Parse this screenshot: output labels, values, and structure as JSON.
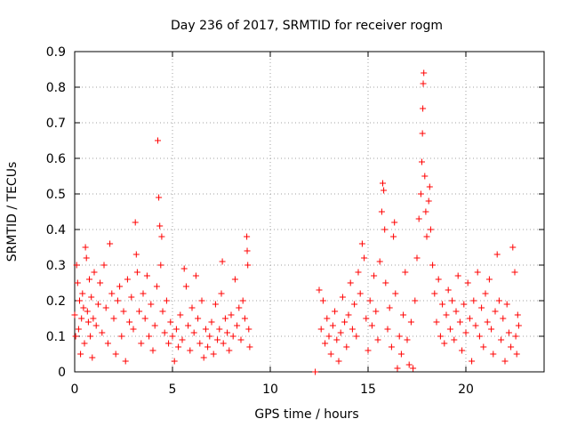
{
  "chart_data": {
    "type": "scatter",
    "title": "Day 236 of 2017, SRMTID for receiver rogm",
    "xlabel": "GPS time / hours",
    "ylabel": "SRMTID / TECUs",
    "xlim": [
      0,
      24
    ],
    "ylim": [
      0,
      0.9
    ],
    "xticks": [
      0,
      5,
      10,
      15,
      20
    ],
    "xtick_labels": [
      "0",
      "5",
      "10",
      "15",
      "20"
    ],
    "yticks": [
      0,
      0.1,
      0.2,
      0.3,
      0.4,
      0.5,
      0.6,
      0.7,
      0.8,
      0.9
    ],
    "ytick_labels": [
      "0",
      "0.1",
      "0.2",
      "0.3",
      "0.4",
      "0.5",
      "0.6",
      "0.7",
      "0.8",
      "0.9"
    ],
    "grid": true,
    "marker": "+",
    "color": "#ff0000",
    "series": [
      {
        "name": "SRMTID",
        "points": [
          [
            0.0,
            0.16
          ],
          [
            0.05,
            0.1
          ],
          [
            0.1,
            0.3
          ],
          [
            0.15,
            0.25
          ],
          [
            0.2,
            0.12
          ],
          [
            0.25,
            0.2
          ],
          [
            0.3,
            0.05
          ],
          [
            0.35,
            0.15
          ],
          [
            0.4,
            0.22
          ],
          [
            0.45,
            0.18
          ],
          [
            0.5,
            0.08
          ],
          [
            0.55,
            0.35
          ],
          [
            0.6,
            0.32
          ],
          [
            0.65,
            0.17
          ],
          [
            0.7,
            0.14
          ],
          [
            0.75,
            0.26
          ],
          [
            0.8,
            0.1
          ],
          [
            0.85,
            0.21
          ],
          [
            0.9,
            0.04
          ],
          [
            0.95,
            0.15
          ],
          [
            1.0,
            0.28
          ],
          [
            1.1,
            0.13
          ],
          [
            1.2,
            0.19
          ],
          [
            1.3,
            0.25
          ],
          [
            1.4,
            0.11
          ],
          [
            1.5,
            0.3
          ],
          [
            1.6,
            0.18
          ],
          [
            1.7,
            0.08
          ],
          [
            1.8,
            0.36
          ],
          [
            1.9,
            0.22
          ],
          [
            2.0,
            0.15
          ],
          [
            2.1,
            0.05
          ],
          [
            2.2,
            0.2
          ],
          [
            2.3,
            0.24
          ],
          [
            2.4,
            0.1
          ],
          [
            2.5,
            0.17
          ],
          [
            2.6,
            0.03
          ],
          [
            2.7,
            0.26
          ],
          [
            2.8,
            0.14
          ],
          [
            2.9,
            0.21
          ],
          [
            3.0,
            0.12
          ],
          [
            3.1,
            0.42
          ],
          [
            3.15,
            0.33
          ],
          [
            3.2,
            0.28
          ],
          [
            3.3,
            0.17
          ],
          [
            3.4,
            0.08
          ],
          [
            3.5,
            0.22
          ],
          [
            3.6,
            0.15
          ],
          [
            3.7,
            0.27
          ],
          [
            3.8,
            0.1
          ],
          [
            3.9,
            0.19
          ],
          [
            4.0,
            0.06
          ],
          [
            4.1,
            0.13
          ],
          [
            4.2,
            0.24
          ],
          [
            4.25,
            0.65
          ],
          [
            4.3,
            0.49
          ],
          [
            4.35,
            0.41
          ],
          [
            4.4,
            0.3
          ],
          [
            4.45,
            0.38
          ],
          [
            4.5,
            0.17
          ],
          [
            4.6,
            0.11
          ],
          [
            4.7,
            0.2
          ],
          [
            4.8,
            0.08
          ],
          [
            4.9,
            0.14
          ],
          [
            5.0,
            0.1
          ],
          [
            5.1,
            0.03
          ],
          [
            5.2,
            0.12
          ],
          [
            5.3,
            0.07
          ],
          [
            5.4,
            0.16
          ],
          [
            5.5,
            0.09
          ],
          [
            5.6,
            0.29
          ],
          [
            5.7,
            0.24
          ],
          [
            5.8,
            0.13
          ],
          [
            5.9,
            0.06
          ],
          [
            6.0,
            0.18
          ],
          [
            6.1,
            0.11
          ],
          [
            6.2,
            0.27
          ],
          [
            6.3,
            0.15
          ],
          [
            6.4,
            0.08
          ],
          [
            6.5,
            0.2
          ],
          [
            6.6,
            0.04
          ],
          [
            6.7,
            0.12
          ],
          [
            6.8,
            0.07
          ],
          [
            6.9,
            0.1
          ],
          [
            7.0,
            0.14
          ],
          [
            7.1,
            0.05
          ],
          [
            7.2,
            0.19
          ],
          [
            7.3,
            0.09
          ],
          [
            7.4,
            0.12
          ],
          [
            7.5,
            0.22
          ],
          [
            7.55,
            0.31
          ],
          [
            7.6,
            0.08
          ],
          [
            7.7,
            0.15
          ],
          [
            7.8,
            0.11
          ],
          [
            7.9,
            0.06
          ],
          [
            8.0,
            0.16
          ],
          [
            8.1,
            0.1
          ],
          [
            8.2,
            0.26
          ],
          [
            8.3,
            0.13
          ],
          [
            8.4,
            0.18
          ],
          [
            8.5,
            0.09
          ],
          [
            8.6,
            0.2
          ],
          [
            8.7,
            0.15
          ],
          [
            8.8,
            0.38
          ],
          [
            8.82,
            0.34
          ],
          [
            8.85,
            0.3
          ],
          [
            8.9,
            0.12
          ],
          [
            8.95,
            0.07
          ],
          [
            12.3,
            0.0
          ],
          [
            12.5,
            0.23
          ],
          [
            12.6,
            0.12
          ],
          [
            12.7,
            0.2
          ],
          [
            12.8,
            0.08
          ],
          [
            12.9,
            0.15
          ],
          [
            13.0,
            0.1
          ],
          [
            13.1,
            0.05
          ],
          [
            13.2,
            0.13
          ],
          [
            13.3,
            0.17
          ],
          [
            13.4,
            0.09
          ],
          [
            13.5,
            0.03
          ],
          [
            13.6,
            0.11
          ],
          [
            13.7,
            0.21
          ],
          [
            13.8,
            0.14
          ],
          [
            13.9,
            0.07
          ],
          [
            14.0,
            0.16
          ],
          [
            14.1,
            0.25
          ],
          [
            14.2,
            0.12
          ],
          [
            14.3,
            0.19
          ],
          [
            14.4,
            0.1
          ],
          [
            14.5,
            0.28
          ],
          [
            14.6,
            0.22
          ],
          [
            14.7,
            0.36
          ],
          [
            14.8,
            0.32
          ],
          [
            14.9,
            0.15
          ],
          [
            15.0,
            0.06
          ],
          [
            15.1,
            0.2
          ],
          [
            15.2,
            0.13
          ],
          [
            15.3,
            0.27
          ],
          [
            15.4,
            0.17
          ],
          [
            15.5,
            0.09
          ],
          [
            15.6,
            0.31
          ],
          [
            15.7,
            0.45
          ],
          [
            15.75,
            0.53
          ],
          [
            15.8,
            0.51
          ],
          [
            15.85,
            0.4
          ],
          [
            15.9,
            0.25
          ],
          [
            16.0,
            0.12
          ],
          [
            16.1,
            0.18
          ],
          [
            16.2,
            0.07
          ],
          [
            16.3,
            0.38
          ],
          [
            16.35,
            0.42
          ],
          [
            16.4,
            0.22
          ],
          [
            16.5,
            0.01
          ],
          [
            16.6,
            0.1
          ],
          [
            16.7,
            0.05
          ],
          [
            16.8,
            0.16
          ],
          [
            16.9,
            0.28
          ],
          [
            17.0,
            0.09
          ],
          [
            17.1,
            0.02
          ],
          [
            17.2,
            0.14
          ],
          [
            17.3,
            0.01
          ],
          [
            17.4,
            0.2
          ],
          [
            17.5,
            0.32
          ],
          [
            17.6,
            0.43
          ],
          [
            17.7,
            0.5
          ],
          [
            17.75,
            0.59
          ],
          [
            17.78,
            0.67
          ],
          [
            17.8,
            0.74
          ],
          [
            17.82,
            0.81
          ],
          [
            17.85,
            0.84
          ],
          [
            17.9,
            0.55
          ],
          [
            17.95,
            0.45
          ],
          [
            18.0,
            0.38
          ],
          [
            18.1,
            0.48
          ],
          [
            18.15,
            0.52
          ],
          [
            18.2,
            0.4
          ],
          [
            18.3,
            0.3
          ],
          [
            18.4,
            0.22
          ],
          [
            18.5,
            0.14
          ],
          [
            18.6,
            0.26
          ],
          [
            18.7,
            0.1
          ],
          [
            18.8,
            0.19
          ],
          [
            18.9,
            0.08
          ],
          [
            19.0,
            0.16
          ],
          [
            19.1,
            0.23
          ],
          [
            19.2,
            0.12
          ],
          [
            19.3,
            0.2
          ],
          [
            19.4,
            0.09
          ],
          [
            19.5,
            0.17
          ],
          [
            19.6,
            0.27
          ],
          [
            19.7,
            0.14
          ],
          [
            19.8,
            0.06
          ],
          [
            19.9,
            0.19
          ],
          [
            20.0,
            0.11
          ],
          [
            20.1,
            0.25
          ],
          [
            20.2,
            0.15
          ],
          [
            20.3,
            0.03
          ],
          [
            20.4,
            0.2
          ],
          [
            20.5,
            0.13
          ],
          [
            20.6,
            0.28
          ],
          [
            20.7,
            0.1
          ],
          [
            20.8,
            0.18
          ],
          [
            20.9,
            0.07
          ],
          [
            21.0,
            0.22
          ],
          [
            21.1,
            0.14
          ],
          [
            21.2,
            0.26
          ],
          [
            21.3,
            0.12
          ],
          [
            21.4,
            0.05
          ],
          [
            21.5,
            0.17
          ],
          [
            21.6,
            0.33
          ],
          [
            21.7,
            0.2
          ],
          [
            21.8,
            0.09
          ],
          [
            21.9,
            0.15
          ],
          [
            22.0,
            0.03
          ],
          [
            22.1,
            0.19
          ],
          [
            22.2,
            0.11
          ],
          [
            22.3,
            0.07
          ],
          [
            22.4,
            0.35
          ],
          [
            22.5,
            0.28
          ],
          [
            22.55,
            0.1
          ],
          [
            22.6,
            0.05
          ],
          [
            22.65,
            0.16
          ],
          [
            22.7,
            0.13
          ]
        ]
      }
    ]
  }
}
